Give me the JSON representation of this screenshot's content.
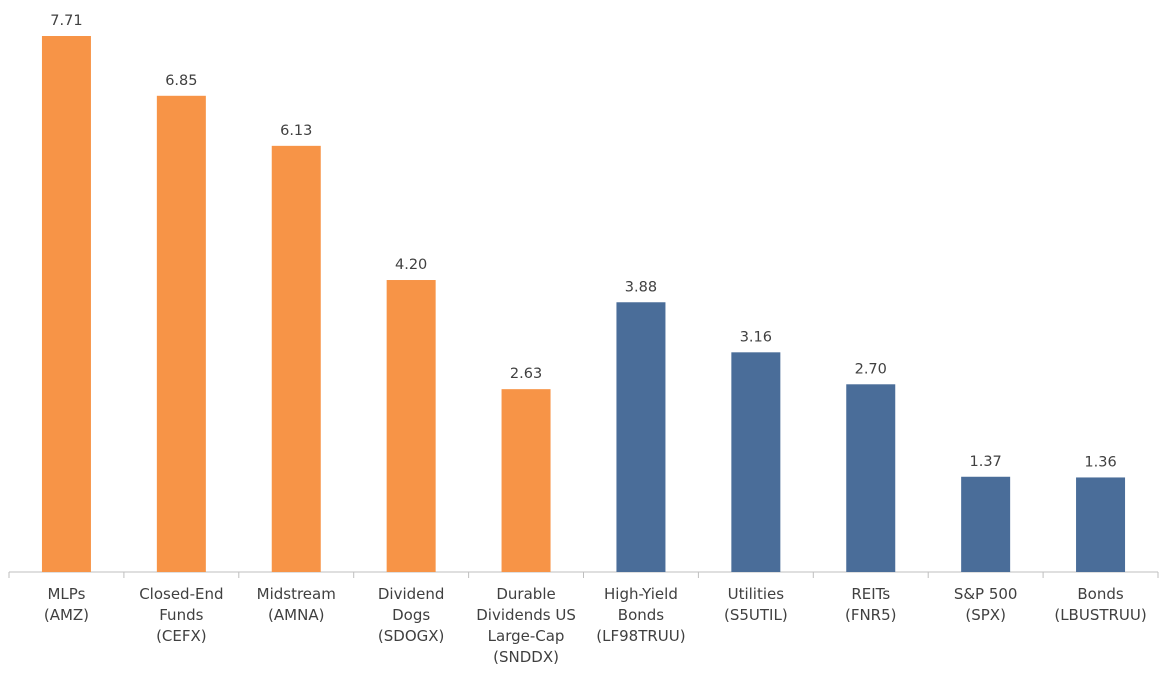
{
  "chart_data": {
    "type": "bar",
    "categories": [
      [
        "MLPs",
        "(AMZ)"
      ],
      [
        "Closed-End",
        "Funds",
        "(CEFX)"
      ],
      [
        "Midstream",
        "(AMNA)"
      ],
      [
        "Dividend",
        "Dogs",
        "(SDOGX)"
      ],
      [
        "Durable",
        "Dividends US",
        "Large-Cap",
        "(SNDDX)"
      ],
      [
        "High-Yield",
        "Bonds",
        "(LF98TRUU)"
      ],
      [
        "Utilities",
        "(S5UTIL)"
      ],
      [
        "REITs",
        "(FNR5)"
      ],
      [
        "S&P 500",
        "(SPX)"
      ],
      [
        "Bonds",
        "(LBUSTRUU)"
      ]
    ],
    "values": [
      7.71,
      6.85,
      6.13,
      4.2,
      2.63,
      3.88,
      3.16,
      2.7,
      1.37,
      1.36
    ],
    "value_labels": [
      "7.71",
      "6.85",
      "6.13",
      "4.20",
      "2.63",
      "3.88",
      "3.16",
      "2.70",
      "1.37",
      "1.36"
    ],
    "colors": [
      "#F79447",
      "#F79447",
      "#F79447",
      "#F79447",
      "#F79447",
      "#4A6D99",
      "#4A6D99",
      "#4A6D99",
      "#4A6D99",
      "#4A6D99"
    ],
    "ylim": [
      0,
      7.71
    ],
    "grid": false,
    "axis_color": "#BFBFBF"
  }
}
